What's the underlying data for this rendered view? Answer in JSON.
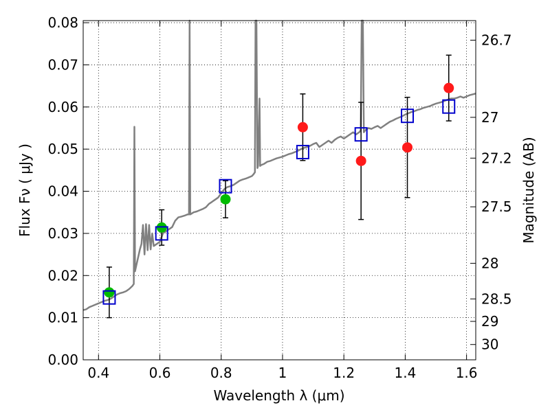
{
  "chart_data": {
    "type": "scatter",
    "xlabel": "Wavelength  λ (μm)",
    "ylabel": "Flux  Fν ( μJy )",
    "ylabel_right": "Magnitude (AB)",
    "xlim": [
      0.35,
      1.63
    ],
    "ylim": [
      0.0,
      0.0805
    ],
    "grid": true,
    "x_ticks": [
      {
        "value": 0.4,
        "label": "0.4"
      },
      {
        "value": 0.6,
        "label": "0.6"
      },
      {
        "value": 0.8,
        "label": "0.8"
      },
      {
        "value": 1.0,
        "label": "1"
      },
      {
        "value": 1.2,
        "label": "1.2"
      },
      {
        "value": 1.4,
        "label": "1.4"
      },
      {
        "value": 1.6,
        "label": "1.6"
      }
    ],
    "y_ticks": [
      {
        "value": 0.0,
        "label": "0.00"
      },
      {
        "value": 0.01,
        "label": "0.01"
      },
      {
        "value": 0.02,
        "label": "0.02"
      },
      {
        "value": 0.03,
        "label": "0.03"
      },
      {
        "value": 0.04,
        "label": "0.04"
      },
      {
        "value": 0.05,
        "label": "0.05"
      },
      {
        "value": 0.06,
        "label": "0.06"
      },
      {
        "value": 0.07,
        "label": "0.07"
      },
      {
        "value": 0.08,
        "label": "0.08"
      }
    ],
    "right_ticks": [
      {
        "label": "26.7"
      },
      {
        "label": "27"
      },
      {
        "label": "27.2"
      },
      {
        "label": "27.5"
      },
      {
        "label": "28"
      },
      {
        "label": "28.5"
      },
      {
        "label": "29"
      },
      {
        "label": "30"
      }
    ],
    "series": [
      {
        "marker": "circle",
        "color": "#00bb00",
        "points": [
          {
            "x": 0.435,
            "y": 0.016,
            "lo": 0.01,
            "hi": 0.022
          },
          {
            "x": 0.606,
            "y": 0.0314,
            "lo": 0.0272,
            "hi": 0.0356
          },
          {
            "x": 0.814,
            "y": 0.0381,
            "lo": 0.0337,
            "hi": 0.0425
          }
        ]
      },
      {
        "marker": "circle",
        "color": "#ff1a1a",
        "points": [
          {
            "x": 1.066,
            "y": 0.0552,
            "lo": 0.0473,
            "hi": 0.0631
          },
          {
            "x": 1.256,
            "y": 0.0472,
            "lo": 0.0333,
            "hi": 0.0611
          },
          {
            "x": 1.407,
            "y": 0.0504,
            "lo": 0.0385,
            "hi": 0.0623
          },
          {
            "x": 1.542,
            "y": 0.0645,
            "lo": 0.0567,
            "hi": 0.0723
          }
        ]
      },
      {
        "marker": "square",
        "color": "#0000cc",
        "points": [
          {
            "x": 0.435,
            "y": 0.0148
          },
          {
            "x": 0.606,
            "y": 0.03
          },
          {
            "x": 0.814,
            "y": 0.0412
          },
          {
            "x": 1.066,
            "y": 0.0493
          },
          {
            "x": 1.256,
            "y": 0.0535
          },
          {
            "x": 1.407,
            "y": 0.0579
          },
          {
            "x": 1.542,
            "y": 0.0601
          }
        ]
      },
      {
        "line": true,
        "color": "#808080",
        "points": [
          [
            0.35,
            0.0118
          ],
          [
            0.36,
            0.012
          ],
          [
            0.37,
            0.0125
          ],
          [
            0.38,
            0.0128
          ],
          [
            0.39,
            0.0131
          ],
          [
            0.4,
            0.0134
          ],
          [
            0.41,
            0.0137
          ],
          [
            0.42,
            0.014
          ],
          [
            0.43,
            0.0142
          ],
          [
            0.44,
            0.0145
          ],
          [
            0.45,
            0.015
          ],
          [
            0.46,
            0.0155
          ],
          [
            0.47,
            0.0158
          ],
          [
            0.48,
            0.016
          ],
          [
            0.49,
            0.0163
          ],
          [
            0.5,
            0.0168
          ],
          [
            0.51,
            0.0175
          ],
          [
            0.515,
            0.018
          ],
          [
            0.517,
            0.0553
          ],
          [
            0.519,
            0.021
          ],
          [
            0.525,
            0.023
          ],
          [
            0.535,
            0.0262
          ],
          [
            0.54,
            0.0275
          ],
          [
            0.545,
            0.032
          ],
          [
            0.55,
            0.025
          ],
          [
            0.555,
            0.0322
          ],
          [
            0.56,
            0.026
          ],
          [
            0.565,
            0.032
          ],
          [
            0.57,
            0.0262
          ],
          [
            0.575,
            0.03
          ],
          [
            0.58,
            0.027
          ],
          [
            0.59,
            0.0275
          ],
          [
            0.6,
            0.028
          ],
          [
            0.605,
            0.029
          ],
          [
            0.61,
            0.03
          ],
          [
            0.62,
            0.0305
          ],
          [
            0.63,
            0.031
          ],
          [
            0.64,
            0.0315
          ],
          [
            0.65,
            0.033
          ],
          [
            0.66,
            0.0338
          ],
          [
            0.67,
            0.034
          ],
          [
            0.68,
            0.0342
          ],
          [
            0.69,
            0.0345
          ],
          [
            0.695,
            0.0345
          ],
          [
            0.697,
            0.0805
          ],
          [
            0.699,
            0.0345
          ],
          [
            0.71,
            0.035
          ],
          [
            0.72,
            0.0352
          ],
          [
            0.73,
            0.0355
          ],
          [
            0.74,
            0.0358
          ],
          [
            0.75,
            0.0362
          ],
          [
            0.76,
            0.037
          ],
          [
            0.77,
            0.0375
          ],
          [
            0.78,
            0.038
          ],
          [
            0.79,
            0.0385
          ],
          [
            0.8,
            0.0395
          ],
          [
            0.81,
            0.0405
          ],
          [
            0.82,
            0.041
          ],
          [
            0.83,
            0.0412
          ],
          [
            0.84,
            0.0415
          ],
          [
            0.85,
            0.042
          ],
          [
            0.86,
            0.0425
          ],
          [
            0.87,
            0.0428
          ],
          [
            0.88,
            0.043
          ],
          [
            0.89,
            0.0433
          ],
          [
            0.9,
            0.0436
          ],
          [
            0.905,
            0.044
          ],
          [
            0.91,
            0.0445
          ],
          [
            0.912,
            0.0805
          ],
          [
            0.915,
            0.0805
          ],
          [
            0.918,
            0.0455
          ],
          [
            0.92,
            0.046
          ],
          [
            0.925,
            0.062
          ],
          [
            0.927,
            0.046
          ],
          [
            0.93,
            0.0462
          ],
          [
            0.94,
            0.0465
          ],
          [
            0.95,
            0.047
          ],
          [
            0.96,
            0.0472
          ],
          [
            0.97,
            0.0475
          ],
          [
            0.98,
            0.0478
          ],
          [
            0.99,
            0.048
          ],
          [
            1.0,
            0.0482
          ],
          [
            1.01,
            0.0485
          ],
          [
            1.02,
            0.0488
          ],
          [
            1.03,
            0.049
          ],
          [
            1.04,
            0.0493
          ],
          [
            1.05,
            0.0496
          ],
          [
            1.06,
            0.05
          ],
          [
            1.07,
            0.0503
          ],
          [
            1.08,
            0.0505
          ],
          [
            1.09,
            0.0508
          ],
          [
            1.1,
            0.0512
          ],
          [
            1.11,
            0.0515
          ],
          [
            1.12,
            0.0505
          ],
          [
            1.13,
            0.051
          ],
          [
            1.14,
            0.0515
          ],
          [
            1.15,
            0.052
          ],
          [
            1.16,
            0.0515
          ],
          [
            1.17,
            0.0522
          ],
          [
            1.18,
            0.0527
          ],
          [
            1.19,
            0.053
          ],
          [
            1.2,
            0.0525
          ],
          [
            1.21,
            0.053
          ],
          [
            1.22,
            0.0535
          ],
          [
            1.23,
            0.054
          ],
          [
            1.24,
            0.0535
          ],
          [
            1.25,
            0.054
          ],
          [
            1.255,
            0.0545
          ],
          [
            1.258,
            0.0805
          ],
          [
            1.262,
            0.0805
          ],
          [
            1.265,
            0.054
          ],
          [
            1.27,
            0.0545
          ],
          [
            1.28,
            0.055
          ],
          [
            1.29,
            0.0548
          ],
          [
            1.3,
            0.0552
          ],
          [
            1.31,
            0.0555
          ],
          [
            1.32,
            0.055
          ],
          [
            1.33,
            0.0555
          ],
          [
            1.34,
            0.056
          ],
          [
            1.35,
            0.0565
          ],
          [
            1.36,
            0.0568
          ],
          [
            1.37,
            0.0572
          ],
          [
            1.38,
            0.0575
          ],
          [
            1.39,
            0.0578
          ],
          [
            1.4,
            0.0582
          ],
          [
            1.41,
            0.0585
          ],
          [
            1.42,
            0.0588
          ],
          [
            1.43,
            0.059
          ],
          [
            1.44,
            0.0593
          ],
          [
            1.45,
            0.0595
          ],
          [
            1.46,
            0.0598
          ],
          [
            1.47,
            0.06
          ],
          [
            1.48,
            0.0602
          ],
          [
            1.49,
            0.0605
          ],
          [
            1.5,
            0.0608
          ],
          [
            1.51,
            0.061
          ],
          [
            1.52,
            0.0612
          ],
          [
            1.53,
            0.0615
          ],
          [
            1.54,
            0.0618
          ],
          [
            1.55,
            0.062
          ],
          [
            1.56,
            0.062
          ],
          [
            1.57,
            0.0622
          ],
          [
            1.58,
            0.0625
          ],
          [
            1.59,
            0.0622
          ],
          [
            1.6,
            0.0625
          ],
          [
            1.61,
            0.0628
          ],
          [
            1.62,
            0.063
          ],
          [
            1.63,
            0.0632
          ]
        ]
      }
    ]
  }
}
